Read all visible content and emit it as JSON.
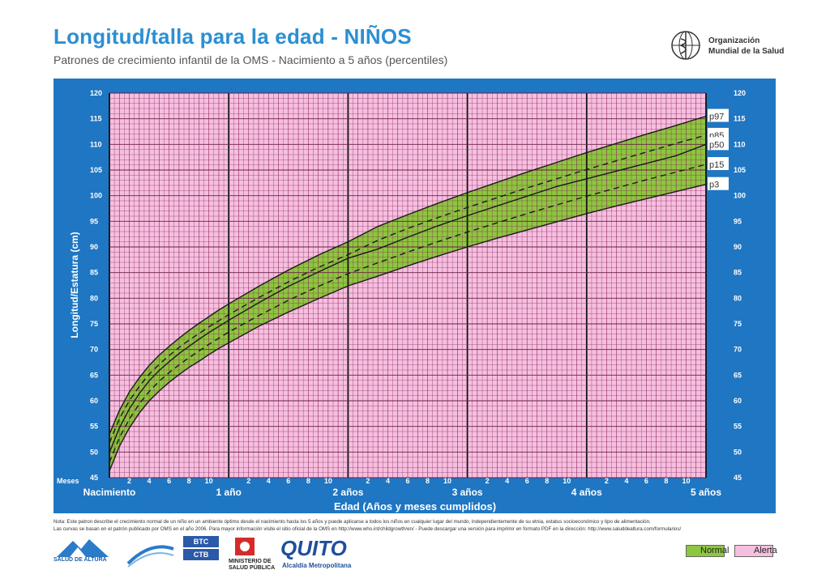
{
  "header": {
    "title": "Longitud/talla para la edad - NIÑOS",
    "subtitle": "Patrones de crecimiento infantil de la OMS - Nacimiento a 5 años (percentiles)",
    "org_line1": "Organización",
    "org_line2": "Mundial de la Salud"
  },
  "chart_data": {
    "type": "line",
    "title": "Longitud/talla para la edad - NIÑOS",
    "xlabel": "Edad (Años y meses cumplidos)",
    "ylabel": "Longitud/Estatura (cm)",
    "x_unit_label": "Meses",
    "xlim": [
      0,
      60
    ],
    "ylim": [
      45,
      120
    ],
    "y_ticks": [
      45,
      50,
      55,
      60,
      65,
      70,
      75,
      80,
      85,
      90,
      95,
      100,
      105,
      110,
      115,
      120
    ],
    "month_ticks": [
      "2",
      "4",
      "6",
      "8",
      "10"
    ],
    "year_labels": [
      "Nacimiento",
      "1 año",
      "2 años",
      "3 años",
      "4 años",
      "5 años"
    ],
    "grid": true,
    "x": [
      0,
      1,
      2,
      3,
      4,
      5,
      6,
      7,
      8,
      9,
      10,
      11,
      12,
      15,
      18,
      21,
      24,
      27,
      30,
      33,
      36,
      39,
      42,
      45,
      48,
      51,
      54,
      57,
      60
    ],
    "series": [
      {
        "name": "p97",
        "values": [
          53.5,
          58.1,
          61.7,
          64.5,
          66.9,
          68.9,
          70.6,
          72.2,
          73.7,
          75.1,
          76.4,
          77.7,
          78.9,
          82.3,
          85.5,
          88.4,
          91.0,
          94.0,
          96.3,
          98.5,
          100.6,
          102.6,
          104.6,
          106.5,
          108.4,
          110.2,
          112.0,
          113.7,
          115.5
        ],
        "dashed": false
      },
      {
        "name": "p85",
        "values": [
          51.8,
          56.5,
          60.0,
          62.8,
          65.2,
          67.1,
          68.8,
          70.4,
          71.8,
          73.1,
          74.4,
          75.6,
          76.8,
          80.1,
          83.2,
          86.0,
          88.5,
          91.3,
          93.6,
          95.7,
          97.7,
          99.6,
          101.5,
          103.3,
          105.1,
          106.8,
          108.5,
          110.2,
          111.8
        ],
        "dashed": true
      },
      {
        "name": "p50",
        "values": [
          49.9,
          54.7,
          58.4,
          61.4,
          63.9,
          65.9,
          67.6,
          69.2,
          70.6,
          72.0,
          73.3,
          74.5,
          75.7,
          79.1,
          82.3,
          85.1,
          87.8,
          89.6,
          91.9,
          94.1,
          96.1,
          98.0,
          99.9,
          101.8,
          103.3,
          104.8,
          106.3,
          107.8,
          110.0
        ],
        "dashed": false
      },
      {
        "name": "p15",
        "values": [
          48.0,
          52.8,
          56.4,
          59.4,
          61.8,
          63.8,
          65.5,
          67.0,
          68.4,
          69.7,
          71.0,
          72.2,
          73.4,
          76.6,
          79.6,
          82.3,
          84.8,
          86.9,
          89.0,
          91.0,
          92.9,
          94.7,
          96.5,
          98.2,
          99.9,
          101.5,
          103.1,
          104.6,
          106.1
        ],
        "dashed": true
      },
      {
        "name": "p3",
        "values": [
          46.3,
          51.1,
          54.7,
          57.6,
          60.0,
          61.9,
          63.6,
          65.1,
          66.5,
          67.7,
          69.0,
          70.2,
          71.3,
          74.5,
          77.3,
          79.9,
          82.4,
          84.3,
          86.3,
          88.2,
          90.0,
          91.7,
          93.3,
          94.9,
          96.5,
          98.0,
          99.4,
          100.8,
          102.2
        ],
        "dashed": false
      }
    ],
    "colors": {
      "panel": "#1f76c2",
      "normal": "#8dc63f",
      "alerta": "#f6bfe0",
      "grid": "#8a2a5a",
      "curve": "#1a1a1a"
    },
    "legend": [
      {
        "label": "Normal",
        "color": "#8dc63f"
      },
      {
        "label": "Alerta",
        "color": "#f6bfe0"
      }
    ]
  },
  "notes": {
    "line1": "Nota: Este patron describe el crecimiento normal de un niño en un ambiente óptimo desde el nacimiento hasta los 5 años y puede aplicarse a todos los niños en cualquier lugar del mundo, independientemente de su etnia, estatus socioeconómico y tipo de alimentación.",
    "line2": "Las curvas se basan en el patrón publicado por OMS en el año 2006. Para mayor información visite el sitio oficial de la OMS en http://www.who.int/childgrowth/en/ - Puede descargar una versión para imprimir en formato PDF en la dirección: http://www.saluddealtura.com/formularios/"
  },
  "logos": {
    "salud": "SALUD DE ALTURA",
    "btc1": "BTC",
    "btc2": "CTB",
    "ministerio1": "MINISTERIO DE",
    "ministerio2": "SALUD PÚBLICA",
    "quito": "QUITO",
    "alcaldia": "Alcaldía Metropolitana"
  }
}
